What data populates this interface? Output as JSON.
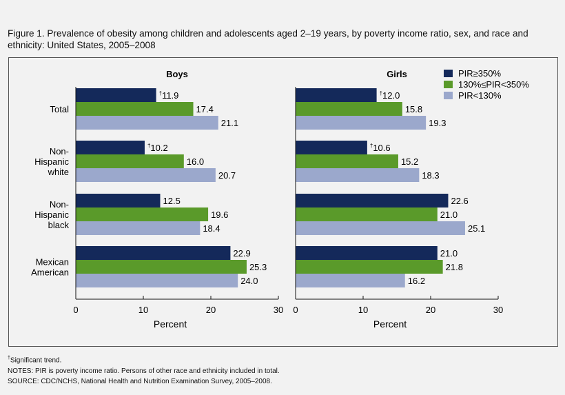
{
  "title": "Figure 1. Prevalence of obesity among children and adolescents aged 2–19 years, by poverty income ratio, sex, and race and ethnicity: United States, 2005–2008",
  "notes": {
    "dagger": "†",
    "trend": "Significant trend.",
    "pir_note": "NOTES: PIR is poverty income ratio. Persons of other race and ethnicity included in total.",
    "source": "SOURCE: CDC/NCHS, National Health and Nutrition Examination Survey, 2005–2008."
  },
  "colors": {
    "pir_high": "#14295a",
    "pir_mid": "#5a9a2a",
    "pir_low": "#9ba8cc"
  },
  "chart_data": {
    "type": "bar",
    "orientation": "horizontal",
    "categories": [
      "Total",
      "Non-Hispanic white",
      "Non-Hispanic black",
      "Mexican American"
    ],
    "category_lines": [
      [
        "Total"
      ],
      [
        "Non-",
        "Hispanic",
        "white"
      ],
      [
        "Non-",
        "Hispanic",
        "black"
      ],
      [
        "Mexican",
        "American"
      ]
    ],
    "xlabel": "Percent",
    "xlim": [
      0,
      30
    ],
    "ticks": [
      0,
      10,
      20,
      30
    ],
    "legend_position": "top-right",
    "legend": [
      "PIR≥350%",
      "130%≤PIR<350%",
      "PIR<130%"
    ],
    "panels": [
      {
        "title": "Boys",
        "series": [
          {
            "name": "PIR≥350%",
            "values": [
              11.9,
              10.2,
              12.5,
              22.9
            ],
            "labels": [
              "11.9",
              "10.2",
              "12.5",
              "22.9"
            ],
            "trend_marker": [
              true,
              true,
              false,
              false
            ]
          },
          {
            "name": "130%≤PIR<350%",
            "values": [
              17.4,
              16.0,
              19.6,
              25.3
            ],
            "labels": [
              "17.4",
              "16.0",
              "19.6",
              "25.3"
            ]
          },
          {
            "name": "PIR<130%",
            "values": [
              21.1,
              20.7,
              18.4,
              24.0
            ],
            "labels": [
              "21.1",
              "20.7",
              "18.4",
              "24.0"
            ]
          }
        ]
      },
      {
        "title": "Girls",
        "series": [
          {
            "name": "PIR≥350%",
            "values": [
              12.0,
              10.6,
              22.6,
              21.0
            ],
            "labels": [
              "12.0",
              "10.6",
              "22.6",
              "21.0"
            ],
            "trend_marker": [
              true,
              true,
              false,
              false
            ]
          },
          {
            "name": "130%≤PIR<350%",
            "values": [
              15.8,
              15.2,
              21.0,
              21.8
            ],
            "labels": [
              "15.8",
              "15.2",
              "21.0",
              "21.8"
            ]
          },
          {
            "name": "PIR<130%",
            "values": [
              19.3,
              18.3,
              25.1,
              16.2
            ],
            "labels": [
              "19.3",
              "18.3",
              "25.1",
              "16.2"
            ]
          }
        ]
      }
    ]
  }
}
